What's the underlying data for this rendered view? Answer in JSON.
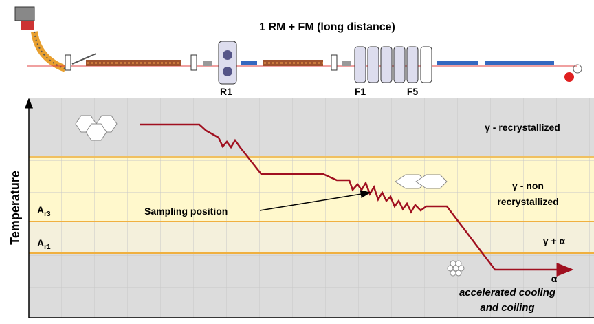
{
  "header": {
    "title": "1 RM + FM (long distance)",
    "stands": [
      "R1",
      "F1",
      "F5"
    ]
  },
  "diagram": {
    "y_axis_label": "Temperature",
    "levels": [
      {
        "symbol": "A",
        "subscript": "r3"
      },
      {
        "symbol": "A",
        "subscript": "r1"
      }
    ],
    "regions": [
      {
        "lines": [
          "γ - recrystallized"
        ]
      },
      {
        "lines": [
          "γ - non",
          "recrystallized"
        ]
      },
      {
        "lines": [
          "γ + α"
        ]
      },
      {
        "lines": [
          "α"
        ]
      }
    ],
    "annotation": "Sampling position",
    "note": [
      "accelerated cooling",
      "and coiling"
    ]
  }
}
